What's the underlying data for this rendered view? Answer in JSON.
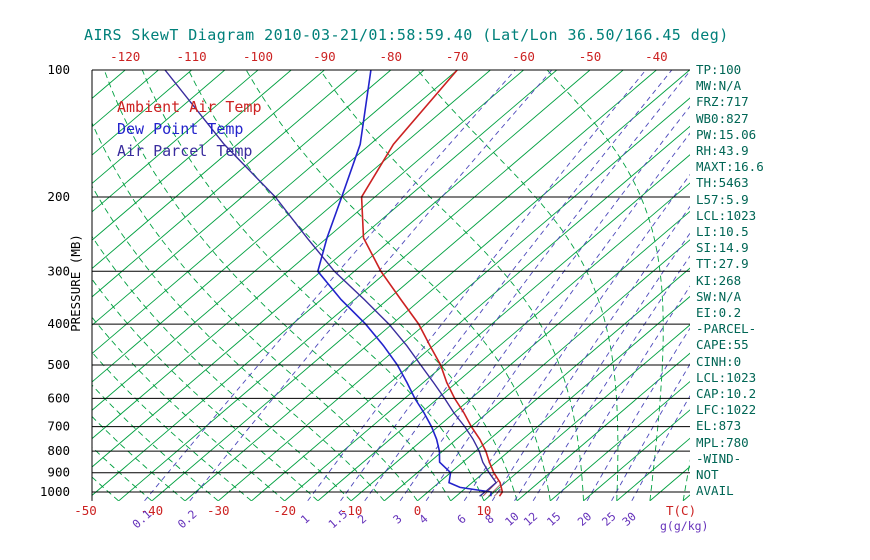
{
  "title": "AIRS SkewT Diagram 2010-03-21/01:58:59.40 (Lat/Lon 36.50/166.45 deg)",
  "colors": {
    "title": "#00807a",
    "temp_axis": "#cc2222",
    "isotherm": "#00a040",
    "moist_adiabat": "#00a040",
    "mixing_ratio": "#4d49bb",
    "mixing_label": "#6633bb",
    "isobar": "#000000",
    "stats": "#006655",
    "hatch": "#8b2020"
  },
  "stats_panel": {
    "lines": [
      "TP:100",
      "MW:N/A",
      "FRZ:717",
      "WB0:827",
      "PW:15.06",
      "RH:43.9",
      "MAXT:16.6",
      "TH:5463",
      "L57:5.9",
      "LCL:1023",
      "LI:10.5",
      "SI:14.9",
      "TT:27.9",
      "KI:268",
      "SW:N/A",
      "EI:0.2",
      "-PARCEL-",
      "CAPE:55",
      "CINH:0",
      "LCL:1023",
      "CAP:10.2",
      "LFC:1022",
      "EL:873",
      "MPL:780",
      "-WIND-",
      "NOT",
      "AVAIL"
    ]
  },
  "chart_data": {
    "type": "line",
    "variant": "skew-t-log-p",
    "title": "AIRS SkewT Diagram 2010-03-21/01:58:59.40 (Lat/Lon 36.50/166.45 deg)",
    "xlabel": "T(C)",
    "x_unit_secondary": "g(g/kg)",
    "ylabel": "PRESSURE (MB)",
    "grid": true,
    "pressure_range": [
      100,
      1050
    ],
    "pressure_ticks": [
      100,
      200,
      300,
      400,
      500,
      600,
      700,
      800,
      900,
      1000
    ],
    "top_temp_ticks": [
      -120,
      -110,
      -100,
      -90,
      -80,
      -70,
      -60,
      -50,
      -40
    ],
    "bottom_temp_ticks": [
      -50,
      -40,
      -30,
      -20,
      -10,
      0,
      10
    ],
    "mixing_ratio_ticks": [
      0.1,
      0.2,
      1,
      1.5,
      2,
      3,
      4,
      6,
      8,
      10,
      12,
      15,
      20,
      25,
      30
    ],
    "isotherm_step_c": 5,
    "moist_adiabat_start_temps_c": [
      -60,
      -55,
      -50,
      -45,
      -40,
      -35,
      -30,
      -25,
      -20,
      -15,
      -10,
      -5,
      0,
      5,
      10,
      15,
      20,
      25,
      30,
      35,
      40
    ],
    "series": [
      {
        "name": "Ambient Air Temp",
        "color": "#cc2222",
        "width": 1.6,
        "data_name": "ambient-temp-curve",
        "points": [
          [
            1023,
            11.5
          ],
          [
            1000,
            11.2
          ],
          [
            950,
            9.2
          ],
          [
            900,
            6.5
          ],
          [
            850,
            4
          ],
          [
            800,
            1.5
          ],
          [
            750,
            -1.5
          ],
          [
            700,
            -5
          ],
          [
            650,
            -8.5
          ],
          [
            600,
            -12.5
          ],
          [
            550,
            -16.5
          ],
          [
            500,
            -20.5
          ],
          [
            450,
            -25.5
          ],
          [
            400,
            -31
          ],
          [
            350,
            -38
          ],
          [
            300,
            -46
          ],
          [
            250,
            -54.5
          ],
          [
            200,
            -62
          ],
          [
            150,
            -66.5
          ],
          [
            100,
            -70
          ]
        ]
      },
      {
        "name": "Dew Point Temp",
        "color": "#2323cc",
        "width": 1.6,
        "data_name": "dewpoint-curve",
        "points": [
          [
            1023,
            10.2
          ],
          [
            1000,
            9.5
          ],
          [
            975,
            4
          ],
          [
            950,
            1.5
          ],
          [
            900,
            0
          ],
          [
            850,
            -3.5
          ],
          [
            800,
            -5.5
          ],
          [
            750,
            -8
          ],
          [
            700,
            -11
          ],
          [
            650,
            -14.5
          ],
          [
            600,
            -18.5
          ],
          [
            550,
            -22.5
          ],
          [
            500,
            -27
          ],
          [
            450,
            -32.5
          ],
          [
            400,
            -39
          ],
          [
            350,
            -47
          ],
          [
            300,
            -55.5
          ],
          [
            250,
            -60
          ],
          [
            200,
            -65
          ],
          [
            150,
            -71.5
          ],
          [
            100,
            -83
          ]
        ]
      },
      {
        "name": "Air Parcel Temp",
        "color": "#3a2d9e",
        "width": 1.4,
        "data_name": "parcel-curve",
        "points": [
          [
            1023,
            8.5
          ],
          [
            1000,
            8.6
          ],
          [
            950,
            8.6
          ],
          [
            900,
            5.8
          ],
          [
            850,
            3
          ],
          [
            800,
            0.5
          ],
          [
            750,
            -2.5
          ],
          [
            700,
            -6
          ],
          [
            650,
            -10
          ],
          [
            600,
            -14
          ],
          [
            550,
            -18.5
          ],
          [
            500,
            -23.5
          ],
          [
            450,
            -29
          ],
          [
            400,
            -35.5
          ],
          [
            350,
            -43.5
          ],
          [
            300,
            -53
          ],
          [
            250,
            -63
          ],
          [
            200,
            -75
          ],
          [
            150,
            -92
          ],
          [
            100,
            -114
          ]
        ]
      }
    ],
    "cape_hatch": {
      "between": [
        "Air Parcel Temp",
        "Ambient Air Temp"
      ],
      "pressure_range": [
        900,
        1023
      ]
    }
  }
}
